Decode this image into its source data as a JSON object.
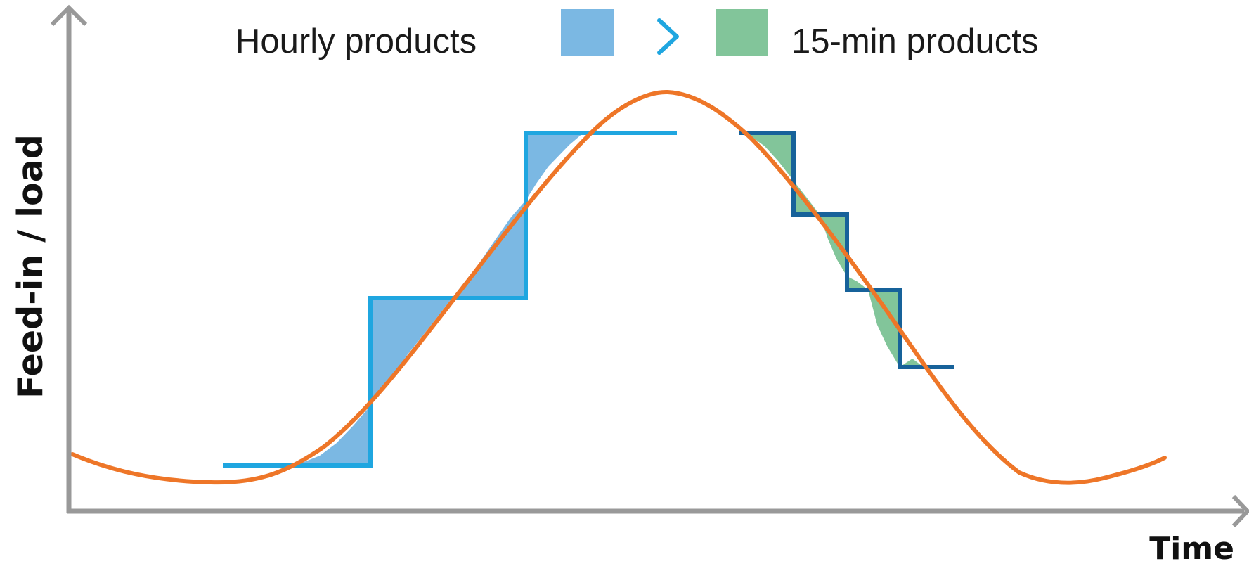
{
  "axes": {
    "y_label": "Feed-in / load",
    "x_label": "Time"
  },
  "legend": {
    "hourly_label": "Hourly products",
    "comparison_symbol": ">",
    "quarter_label": "15-min products"
  },
  "colors": {
    "axis": "#999999",
    "load_curve": "#ee7628",
    "hourly_step": "#1fa6e0",
    "hourly_fill": "#7bb8e3",
    "quarter_step": "#17629a",
    "quarter_fill": "#82c59a",
    "comparison": "#1fa6e0"
  }
}
